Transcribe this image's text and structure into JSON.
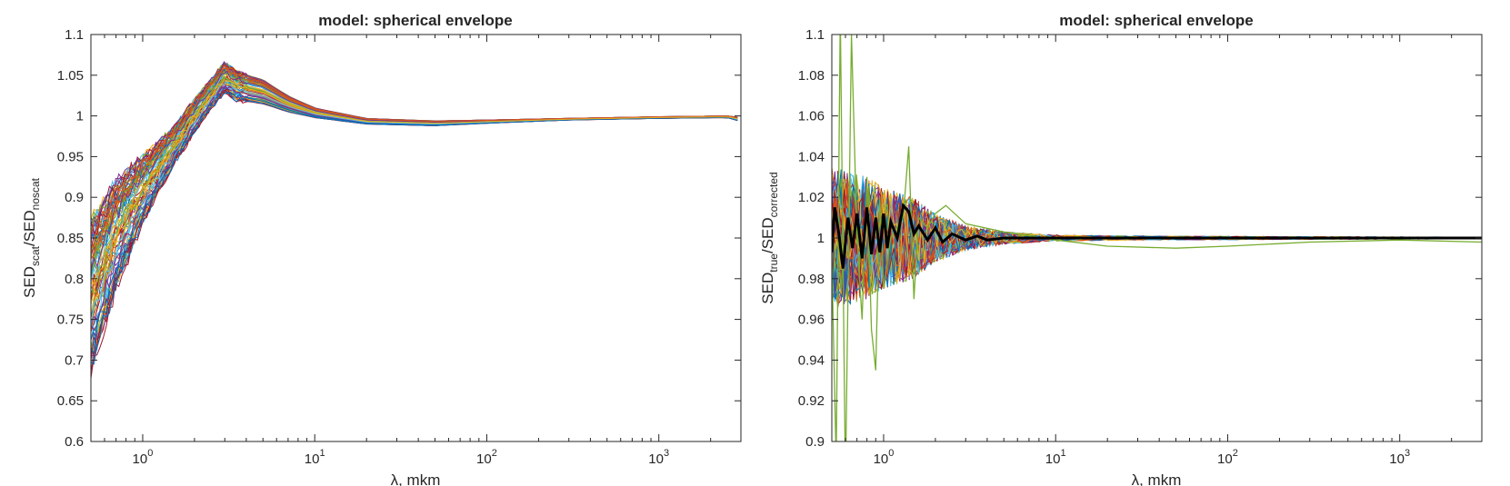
{
  "chart_data": [
    {
      "type": "line",
      "title": "model: spherical envelope",
      "xlabel": "λ, mkm",
      "ylabel": {
        "base": "SED",
        "sub1": "scat",
        "sep": "/SED",
        "sub2": "noscat"
      },
      "xscale": "log",
      "xlim": [
        0.5,
        3000
      ],
      "ylim": [
        0.6,
        1.1
      ],
      "xticks": [
        {
          "base": "10",
          "exp": "0",
          "value": 1
        },
        {
          "base": "10",
          "exp": "1",
          "value": 10
        },
        {
          "base": "10",
          "exp": "2",
          "value": 100
        },
        {
          "base": "10",
          "exp": "3",
          "value": 1000
        }
      ],
      "yticks": [
        "0.6",
        "0.65",
        "0.7",
        "0.75",
        "0.8",
        "0.85",
        "0.9",
        "0.95",
        "1",
        "1.05",
        "1.1"
      ],
      "grid": false,
      "series_count": 80,
      "envelope": {
        "x": [
          0.5,
          0.7,
          1.0,
          1.5,
          2.0,
          2.5,
          3.0,
          3.5,
          5.0,
          7.0,
          10,
          20,
          50,
          100,
          300,
          1000,
          2500,
          3000
        ],
        "lower": [
          0.69,
          0.79,
          0.87,
          0.94,
          0.98,
          1.01,
          1.03,
          1.02,
          1.015,
          1.005,
          0.998,
          0.99,
          0.988,
          0.991,
          0.995,
          0.997,
          0.998,
          0.993
        ],
        "upper": [
          0.87,
          0.92,
          0.95,
          0.985,
          1.02,
          1.045,
          1.066,
          1.055,
          1.045,
          1.025,
          1.01,
          0.997,
          0.994,
          0.995,
          0.997,
          0.999,
          1.0,
          0.998
        ]
      }
    },
    {
      "type": "line",
      "title": "model: spherical envelope",
      "xlabel": "λ, mkm",
      "ylabel": {
        "base": "SED",
        "sub1": "true",
        "sep": "/SED",
        "sub2": "corrected"
      },
      "xscale": "log",
      "xlim": [
        0.5,
        3000
      ],
      "ylim": [
        0.9,
        1.1
      ],
      "xticks": [
        {
          "base": "10",
          "exp": "0",
          "value": 1
        },
        {
          "base": "10",
          "exp": "1",
          "value": 10
        },
        {
          "base": "10",
          "exp": "2",
          "value": 100
        },
        {
          "base": "10",
          "exp": "3",
          "value": 1000
        }
      ],
      "yticks": [
        "0.9",
        "0.92",
        "0.94",
        "0.96",
        "0.98",
        "1",
        "1.02",
        "1.04",
        "1.06",
        "1.08",
        "1.1"
      ],
      "grid": false,
      "series_count": 80,
      "noise": {
        "x": [
          0.5,
          0.8,
          1.0,
          1.5,
          2.0,
          3.0,
          5.0,
          10,
          30,
          100,
          3000
        ],
        "amplitude": [
          0.035,
          0.03,
          0.025,
          0.02,
          0.012,
          0.006,
          0.003,
          0.0015,
          0.001,
          0.0008,
          0.0004
        ]
      },
      "highlight_series": {
        "color": "#000000",
        "x": [
          0.5,
          0.52,
          0.55,
          0.58,
          0.62,
          0.66,
          0.7,
          0.75,
          0.8,
          0.85,
          0.9,
          0.95,
          1.0,
          1.05,
          1.1,
          1.2,
          1.3,
          1.4,
          1.5,
          1.6,
          1.8,
          2.0,
          2.2,
          2.5,
          3.0,
          3.5,
          4.0,
          5.0,
          10,
          100,
          1000,
          3000
        ],
        "y": [
          0.993,
          1.015,
          1.002,
          0.985,
          1.01,
          0.995,
          1.012,
          0.99,
          1.015,
          0.992,
          1.01,
          0.993,
          1.012,
          0.995,
          1.008,
          1.0,
          1.016,
          1.013,
          1.002,
          1.006,
          0.999,
          1.005,
          0.998,
          1.002,
          0.999,
          1.001,
          0.999,
          1.0,
          1.0,
          1.0,
          1.0,
          1.0
        ]
      },
      "outlier_series": {
        "color": "#77ac30",
        "x": [
          0.5,
          0.53,
          0.56,
          0.6,
          0.65,
          0.7,
          0.75,
          0.8,
          0.85,
          0.9,
          0.95,
          1.0,
          1.1,
          1.3,
          1.4,
          1.5,
          1.6,
          1.8,
          2.0,
          2.3,
          3.0,
          5.0,
          10,
          20,
          50,
          100,
          300,
          1000,
          3000
        ],
        "y": [
          0.99,
          0.89,
          1.11,
          0.88,
          1.1,
          1.0,
          0.96,
          1.03,
          0.955,
          0.935,
          1.02,
          0.975,
          1.0,
          1.01,
          1.045,
          0.97,
          1.01,
          1.005,
          1.012,
          1.016,
          1.007,
          1.003,
          0.999,
          0.996,
          0.995,
          0.996,
          0.998,
          0.999,
          0.998
        ]
      }
    }
  ],
  "colors": [
    "#0072bd",
    "#d95319",
    "#edb120",
    "#7e2f8e",
    "#77ac30",
    "#4dbeee",
    "#a2142f"
  ]
}
